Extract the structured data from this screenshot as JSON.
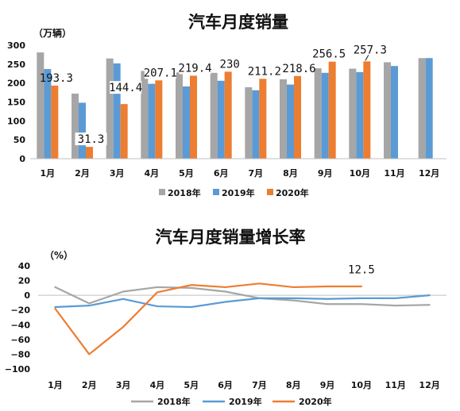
{
  "chart_data": [
    {
      "type": "bar",
      "title": "汽车月度销量",
      "unit": "（万辆）",
      "categories": [
        "1月",
        "2月",
        "3月",
        "4月",
        "5月",
        "6月",
        "7月",
        "8月",
        "9月",
        "10月",
        "11月",
        "12月"
      ],
      "ylim": [
        0,
        300
      ],
      "yticks": [
        "0",
        "50",
        "100",
        "150",
        "200",
        "250",
        "300"
      ],
      "series": [
        {
          "name": "2018年",
          "color": "#a6a6a6",
          "values": [
            281,
            172,
            265,
            232,
            228,
            227,
            189,
            210,
            239,
            238,
            255,
            266
          ]
        },
        {
          "name": "2019年",
          "color": "#5b9bd5",
          "values": [
            237,
            148,
            252,
            198,
            191,
            206,
            181,
            196,
            227,
            229,
            245,
            266
          ]
        },
        {
          "name": "2020年",
          "color": "#ed7d31",
          "values": [
            193.3,
            31.3,
            144.4,
            207.1,
            219.4,
            230,
            211.2,
            218.6,
            256.5,
            257.3,
            null,
            null
          ]
        }
      ],
      "data_labels": [
        "193.3",
        "31.3",
        "144.4",
        "207.1",
        "219.4",
        "230",
        "211.2",
        "218.6",
        "256.5",
        "257.3"
      ],
      "legend": "bottom"
    },
    {
      "type": "line",
      "title": "汽车月度销量增长率",
      "unit": "（%）",
      "categories": [
        "1月",
        "2月",
        "3月",
        "4月",
        "5月",
        "6月",
        "7月",
        "8月",
        "9月",
        "10月",
        "11月",
        "12月"
      ],
      "ylim": [
        -100,
        40
      ],
      "yticks": [
        "40",
        "20",
        "0",
        "−20",
        "−40",
        "−60",
        "−80",
        "−100"
      ],
      "series": [
        {
          "name": "2018年",
          "color": "#a6a6a6",
          "values": [
            11,
            -11,
            5,
            11,
            10,
            5,
            -4,
            -7,
            -12,
            -12,
            -14,
            -13
          ]
        },
        {
          "name": "2019年",
          "color": "#5b9bd5",
          "values": [
            -16,
            -14,
            -5,
            -15,
            -16,
            -9,
            -4,
            -4,
            -5,
            -4,
            -4,
            0
          ]
        },
        {
          "name": "2020年",
          "color": "#ed7d31",
          "values": [
            -18,
            -80,
            -43,
            4,
            14,
            11,
            16,
            11,
            12,
            12,
            null,
            null
          ]
        }
      ],
      "data_labels": [
        "12.5"
      ],
      "legend": "bottom"
    }
  ]
}
